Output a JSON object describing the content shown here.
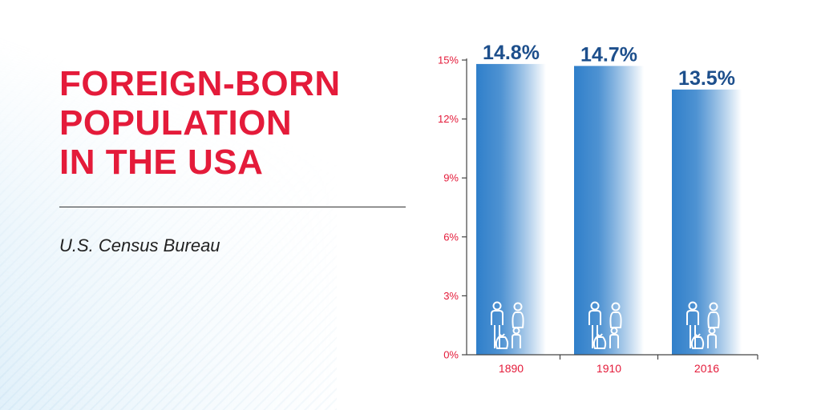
{
  "title_lines": [
    "FOREIGN-BORN",
    "POPULATION",
    "IN THE USA"
  ],
  "source": "U.S. Census Bureau",
  "colors": {
    "accent": "#e41b3a",
    "bar_dark": "#2f7fca",
    "bar_light": "#ffffff",
    "value_label": "#1d4f8c",
    "axis": "#444444"
  },
  "chart_data": {
    "type": "bar",
    "categories": [
      "1890",
      "1910",
      "2016"
    ],
    "values": [
      14.8,
      14.7,
      13.5
    ],
    "value_labels": [
      "14.8%",
      "14.7%",
      "13.5%"
    ],
    "ylim": [
      0,
      15
    ],
    "yticks": [
      0,
      3,
      6,
      9,
      12,
      15
    ],
    "ytick_labels": [
      "0%",
      "3%",
      "6%",
      "9%",
      "12%",
      "15%"
    ],
    "xlabel": "",
    "ylabel": "",
    "grid": false,
    "legend": "none",
    "bar_icon": "family-with-luggage-icon"
  }
}
